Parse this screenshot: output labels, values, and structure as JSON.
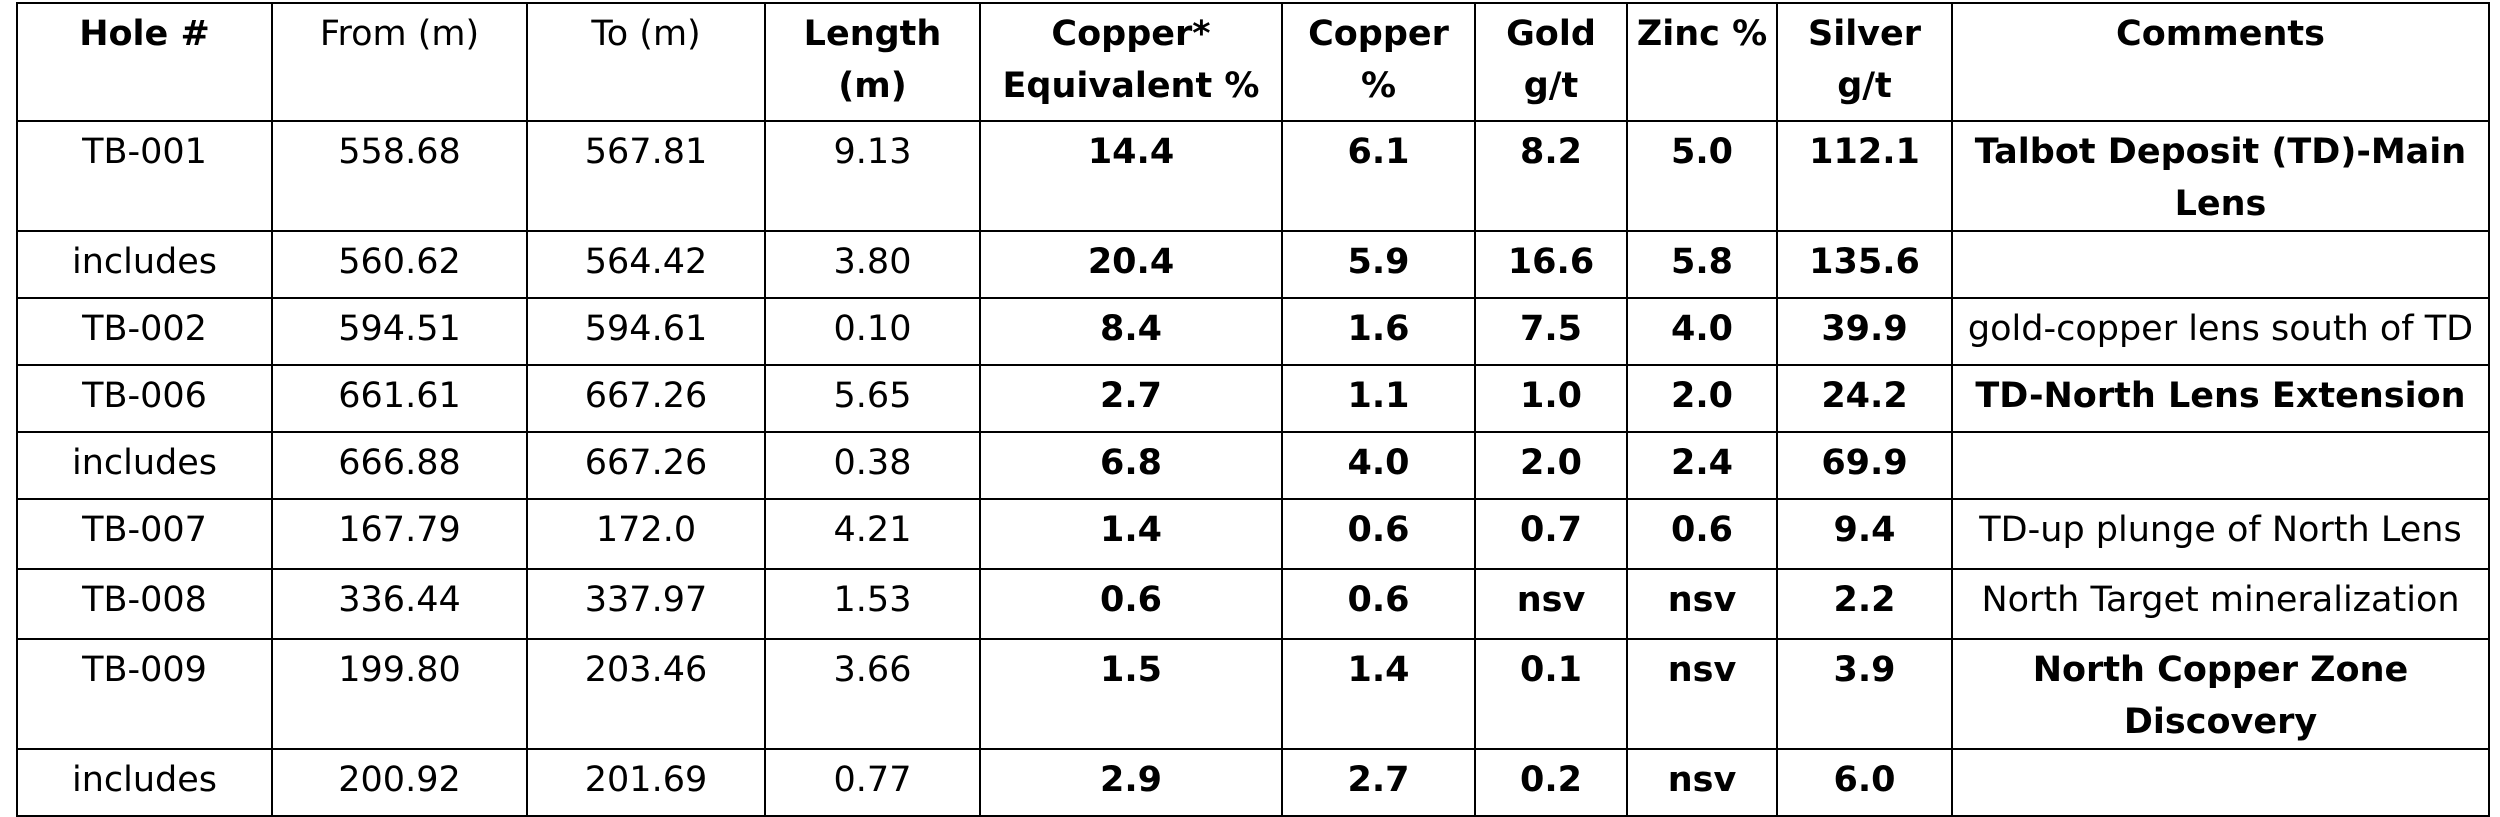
{
  "columns": [
    {
      "label": "Hole #",
      "bold": true
    },
    {
      "label": "From (m)",
      "bold": false
    },
    {
      "label": "To (m)",
      "bold": false
    },
    {
      "label": "Length (m)",
      "bold": true
    },
    {
      "label": "Copper* Equivalent %",
      "bold": true
    },
    {
      "label": "Copper %",
      "bold": true
    },
    {
      "label": "Gold g/t",
      "bold": true
    },
    {
      "label": "Zinc %",
      "bold": true
    },
    {
      "label": "Silver g/t",
      "bold": true
    },
    {
      "label": "Comments",
      "bold": true
    }
  ],
  "rows": [
    {
      "hole": "TB-001",
      "from": "558.68",
      "to": "567.81",
      "length": "9.13",
      "cu_eq": "14.4",
      "copper": "6.1",
      "gold": "8.2",
      "zinc": "5.0",
      "silver": "112.1",
      "comment": "Talbot Deposit (TD)-Main Lens",
      "comment_bold": true
    },
    {
      "hole": "includes",
      "from": "560.62",
      "to": "564.42",
      "length": "3.80",
      "cu_eq": "20.4",
      "copper": "5.9",
      "gold": "16.6",
      "zinc": "5.8",
      "silver": "135.6",
      "comment": "",
      "comment_bold": false
    },
    {
      "hole": "TB-002",
      "from": "594.51",
      "to": "594.61",
      "length": "0.10",
      "cu_eq": "8.4",
      "copper": "1.6",
      "gold": "7.5",
      "zinc": "4.0",
      "silver": "39.9",
      "comment": "gold-copper lens south of TD",
      "comment_bold": false
    },
    {
      "hole": "TB-006",
      "from": "661.61",
      "to": "667.26",
      "length": "5.65",
      "cu_eq": "2.7",
      "copper": "1.1",
      "gold": "1.0",
      "zinc": "2.0",
      "silver": "24.2",
      "comment": "TD-North Lens Extension",
      "comment_bold": true
    },
    {
      "hole": "includes",
      "from": "666.88",
      "to": "667.26",
      "length": "0.38",
      "cu_eq": "6.8",
      "copper": "4.0",
      "gold": "2.0",
      "zinc": "2.4",
      "silver": "69.9",
      "comment": "",
      "comment_bold": false
    },
    {
      "hole": "TB-007",
      "from": "167.79",
      "to": "172.0",
      "length": "4.21",
      "cu_eq": "1.4",
      "copper": "0.6",
      "gold": "0.7",
      "zinc": "0.6",
      "silver": "9.4",
      "comment": "TD-up plunge of North Lens",
      "comment_bold": false
    },
    {
      "hole": "TB-008",
      "from": "336.44",
      "to": "337.97",
      "length": "1.53",
      "cu_eq": "0.6",
      "copper": "0.6",
      "gold": "nsv",
      "zinc": "nsv",
      "silver": "2.2",
      "comment": "North Target mineralization",
      "comment_bold": false
    },
    {
      "hole": "TB-009",
      "from": "199.80",
      "to": "203.46",
      "length": "3.66",
      "cu_eq": "1.5",
      "copper": "1.4",
      "gold": "0.1",
      "zinc": "nsv",
      "silver": "3.9",
      "comment": "North Copper Zone Discovery",
      "comment_bold": true
    },
    {
      "hole": "includes",
      "from": "200.92",
      "to": "201.69",
      "length": "0.77",
      "cu_eq": "2.9",
      "copper": "2.7",
      "gold": "0.2",
      "zinc": "nsv",
      "silver": "6.0",
      "comment": "",
      "comment_bold": false
    }
  ]
}
